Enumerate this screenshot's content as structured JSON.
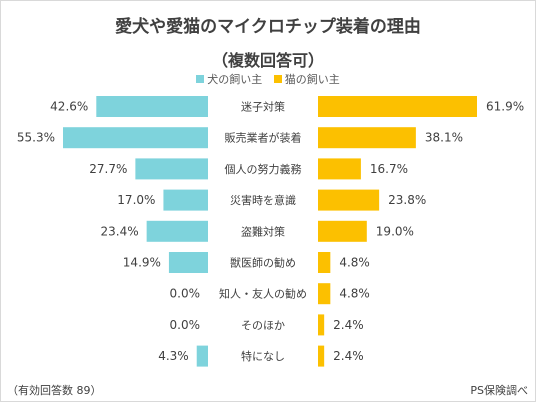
{
  "title": {
    "line1": "愛犬や愛猫のマイクロチップ装着の理由",
    "line2": "（複数回答可）"
  },
  "footnote": {
    "left": "（有効回答数 89）",
    "right": "PS保険調べ"
  },
  "colors": {
    "dog": "#7ed3dc",
    "cat": "#fcc000",
    "text": "#404040"
  },
  "chart_data": {
    "type": "bar",
    "orientation": "horizontal-butterfly",
    "unit": "%",
    "categories": [
      "迷子対策",
      "販売業者が装着",
      "個人の努力義務",
      "災害時を意識",
      "盗難対策",
      "獣医師の勧め",
      "知人・友人の勧め",
      "そのほか",
      "特になし"
    ],
    "series": [
      {
        "name": "犬の飼い主",
        "values": [
          42.6,
          55.3,
          27.7,
          17.0,
          23.4,
          14.9,
          0.0,
          0.0,
          4.3
        ],
        "labels": [
          "42.6%",
          "55.3%",
          "27.7%",
          "17.0%",
          "23.4%",
          "14.9%",
          "0.0%",
          "0.0%",
          "4.3%"
        ]
      },
      {
        "name": "猫の飼い主",
        "values": [
          61.9,
          38.1,
          16.7,
          23.8,
          19.0,
          4.8,
          4.8,
          2.4,
          2.4
        ],
        "labels": [
          "61.9%",
          "38.1%",
          "16.7%",
          "23.8%",
          "19.0%",
          "4.8%",
          "4.8%",
          "2.4%",
          "2.4%"
        ]
      }
    ],
    "xlim": [
      0,
      70
    ],
    "grid": false,
    "legend": "top-center"
  }
}
